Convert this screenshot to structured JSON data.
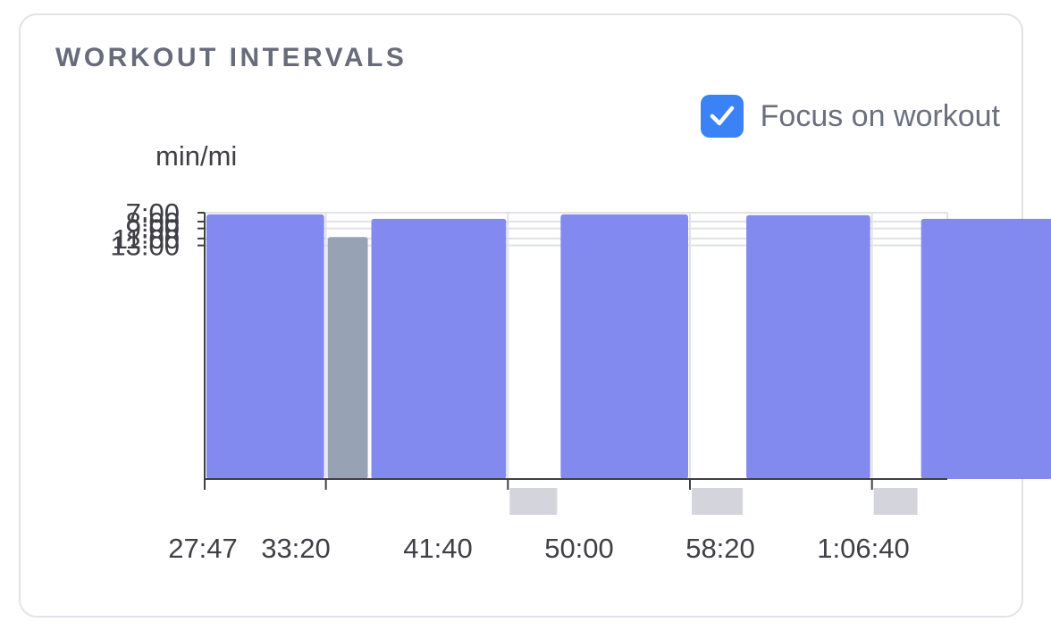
{
  "widget": {
    "title": "WORKOUT INTERVALS",
    "focus_label": "Focus on workout",
    "focus_checked": true
  },
  "chart_data": {
    "type": "bar",
    "title": "WORKOUT INTERVALS",
    "ylabel": "min/mi",
    "xlabel": "",
    "y_inverted": true,
    "y_scale": "reciprocal",
    "y_ticks": [
      "7:00",
      "8:00",
      "9:00",
      "11:00",
      "13:00"
    ],
    "x_ticks": [
      "27:47",
      "33:20",
      "41:40",
      "50:00",
      "58:20",
      "1:06:40"
    ],
    "grid": true,
    "colors": {
      "work": "#8289ef",
      "rest": "#97a2b5",
      "rest_marker": "#d4d5dc"
    },
    "intervals": [
      {
        "kind": "work",
        "start": "27:47",
        "end": "33:20",
        "pace": "7:10"
      },
      {
        "kind": "rest",
        "start": "33:20",
        "end": "35:20",
        "pace": "10:40"
      },
      {
        "kind": "work",
        "start": "35:20",
        "end": "41:40",
        "pace": "7:40"
      },
      {
        "kind": "rest",
        "start": "41:40",
        "end": "44:00",
        "pace": null
      },
      {
        "kind": "work",
        "start": "44:00",
        "end": "50:00",
        "pace": "7:10"
      },
      {
        "kind": "rest",
        "start": "50:00",
        "end": "52:30",
        "pace": null
      },
      {
        "kind": "work",
        "start": "52:30",
        "end": "58:20",
        "pace": "7:15"
      },
      {
        "kind": "rest",
        "start": "58:20",
        "end": "1:00:30",
        "pace": null
      },
      {
        "kind": "work",
        "start": "1:00:30",
        "end": "1:06:40",
        "pace": "7:40"
      },
      {
        "kind": "rest",
        "start": "1:06:40",
        "end": "1:08:40",
        "pace": null
      },
      {
        "kind": "work",
        "start": "1:08:40",
        "end": "1:14:30",
        "pace": "7:35"
      }
    ]
  }
}
